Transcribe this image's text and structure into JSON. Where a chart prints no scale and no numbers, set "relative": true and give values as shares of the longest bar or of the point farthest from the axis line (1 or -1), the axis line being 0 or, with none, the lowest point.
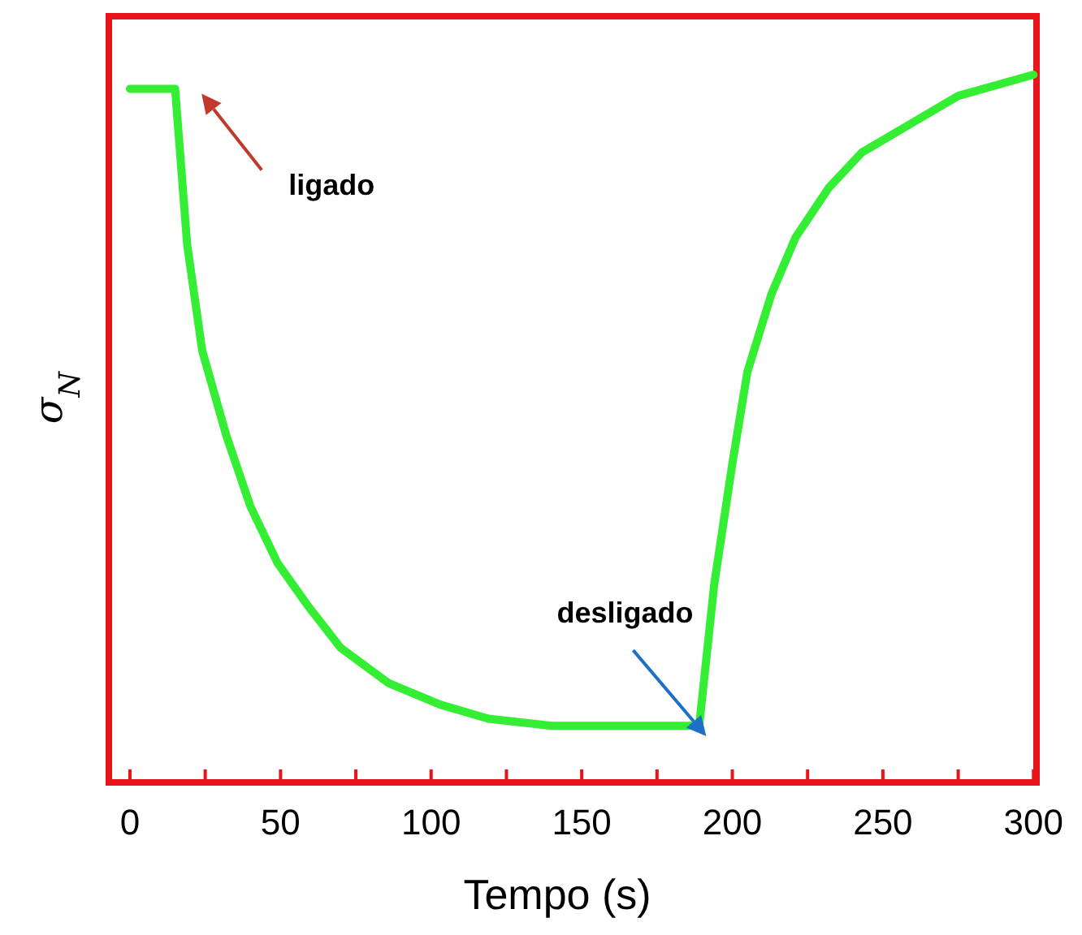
{
  "chart_data": {
    "type": "line",
    "relative": true,
    "xlabel": "Tempo (s)",
    "ylabel": "σ$_{N}$",
    "xlim": [
      -7,
      301
    ],
    "xticks": [
      0,
      {
        "value": 25,
        "label": null
      },
      50,
      {
        "value": 75,
        "label": null
      },
      100,
      {
        "value": 125,
        "label": null
      },
      150,
      {
        "value": 175,
        "label": null
      },
      200,
      {
        "value": 225,
        "label": null
      },
      250,
      {
        "value": 275,
        "label": null
      },
      300
    ],
    "grid": false,
    "line_style": "solid",
    "series": [
      {
        "color": "#33ee33",
        "x": [
          0,
          15,
          19,
          24,
          32,
          40,
          49,
          59,
          70,
          86,
          103,
          119,
          140,
          189,
          194,
          200,
          205,
          213,
          221,
          232,
          243,
          259,
          275,
          300
        ],
        "values": [
          0.98,
          0.98,
          0.76,
          0.61,
          0.49,
          0.39,
          0.31,
          0.25,
          0.19,
          0.14,
          0.11,
          0.09,
          0.08,
          0.08,
          0.28,
          0.45,
          0.58,
          0.69,
          0.77,
          0.84,
          0.89,
          0.93,
          0.97,
          1
        ]
      }
    ],
    "annotations": [
      "ligado",
      "desligado"
    ]
  }
}
